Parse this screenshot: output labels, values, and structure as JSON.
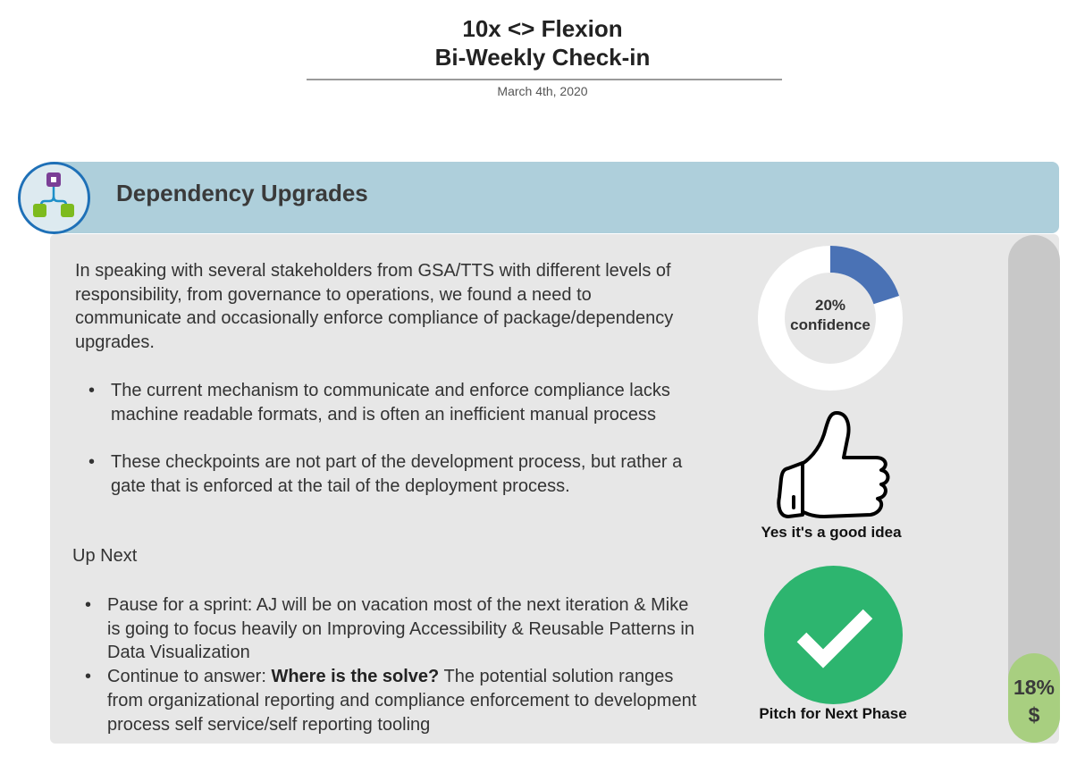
{
  "header": {
    "title_line1": "10x <> Flexion",
    "title_line2": "Bi-Weekly Check-in",
    "date": "March 4th, 2020"
  },
  "section": {
    "title": "Dependency Upgrades",
    "icon": "workflow-hierarchy-icon"
  },
  "body": {
    "intro": "In speaking with several stakeholders from GSA/TTS with different levels of responsibility, from governance to operations, we found a need to communicate and occasionally enforce compliance of package/dependency upgrades.",
    "findings": [
      "The current mechanism to communicate and enforce compliance lacks machine readable formats, and is often an inefficient manual process",
      "These checkpoints are not part of the development process, but rather a gate that is enforced at the tail of the deployment process."
    ],
    "up_next_heading": "Up Next",
    "up_next": [
      {
        "text": "Pause for a sprint: AJ will be on vacation most of the next iteration & Mike is going to focus heavily on Improving Accessibility & Reusable Patterns in Data Visualization"
      },
      {
        "prefix": "Continue to answer: ",
        "bold": "Where is the solve?",
        "suffix": " The potential solution ranges from organizational reporting and compliance enforcement to development process self service/self reporting tooling"
      }
    ]
  },
  "confidence": {
    "value": 20,
    "percent_label": "20%",
    "label": "confidence",
    "color": "#4a72b5",
    "track_color": "#ffffff"
  },
  "thumbs": {
    "icon": "thumbs-up-icon",
    "caption": "Yes it's a good idea"
  },
  "decision": {
    "icon": "checkmark-icon",
    "caption": "Pitch for Next Phase",
    "color": "#2db56f"
  },
  "budget": {
    "value": 18,
    "percent_label": "18%",
    "symbol": "$",
    "fill_color": "#a8cf80",
    "track_color": "#c8c8c8"
  }
}
